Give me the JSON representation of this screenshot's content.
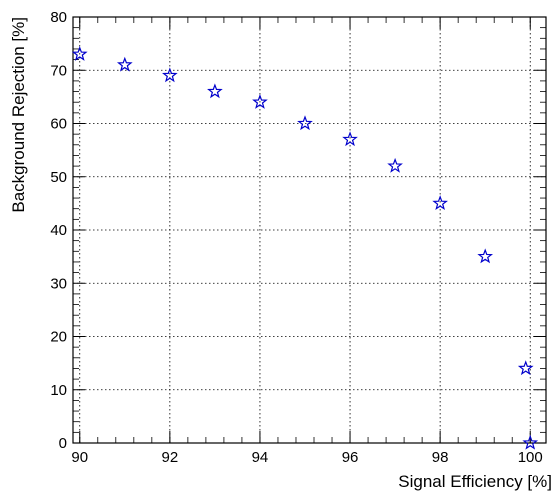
{
  "chart_data": {
    "type": "scatter",
    "xlabel": "Signal Efficiency [%]",
    "ylabel": "Background Rejection [%]",
    "xlim": [
      89.85,
      100.35
    ],
    "ylim": [
      0,
      80
    ],
    "x_ticks": [
      90,
      92,
      94,
      96,
      98,
      100
    ],
    "y_ticks": [
      0,
      10,
      20,
      30,
      40,
      50,
      60,
      70,
      80
    ],
    "grid": true,
    "marker": "open-star",
    "marker_color": "#0000cc",
    "series": [
      {
        "x": [
          90,
          91,
          92,
          93,
          94,
          95,
          96,
          97,
          98,
          99,
          99.9,
          100
        ],
        "y": [
          73,
          71,
          69,
          66,
          64,
          60,
          57,
          52,
          45,
          35,
          14,
          0
        ]
      }
    ]
  }
}
